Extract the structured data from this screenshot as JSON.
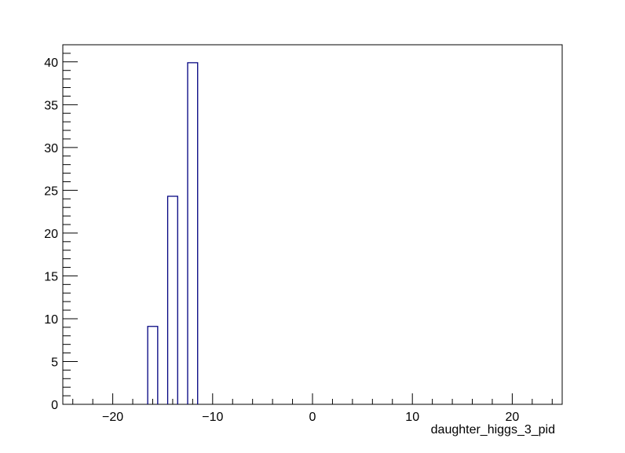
{
  "chart_data": {
    "type": "bar",
    "title": "",
    "xlabel": "daughter_higgs_3_pid",
    "ylabel": "",
    "xlim": [
      -25,
      25
    ],
    "ylim": [
      0,
      42
    ],
    "grid": false,
    "legend": "none",
    "bin_width": 1,
    "bins": [
      {
        "x": -16,
        "value": 9.1
      },
      {
        "x": -14,
        "value": 24.3
      },
      {
        "x": -12,
        "value": 39.9
      }
    ],
    "x_ticks": [
      {
        "value": -20,
        "label": "−20"
      },
      {
        "value": -10,
        "label": "−10"
      },
      {
        "value": 0,
        "label": "0"
      },
      {
        "value": 10,
        "label": "10"
      },
      {
        "value": 20,
        "label": "20"
      }
    ],
    "y_ticks": [
      {
        "value": 0,
        "label": "0"
      },
      {
        "value": 5,
        "label": "5"
      },
      {
        "value": 10,
        "label": "10"
      },
      {
        "value": 15,
        "label": "15"
      },
      {
        "value": 20,
        "label": "20"
      },
      {
        "value": 25,
        "label": "25"
      },
      {
        "value": 30,
        "label": "30"
      },
      {
        "value": 35,
        "label": "35"
      },
      {
        "value": 40,
        "label": "40"
      }
    ],
    "colors": {
      "bar_outline": "#00007f",
      "axis": "#000000",
      "background": "#ffffff"
    }
  }
}
